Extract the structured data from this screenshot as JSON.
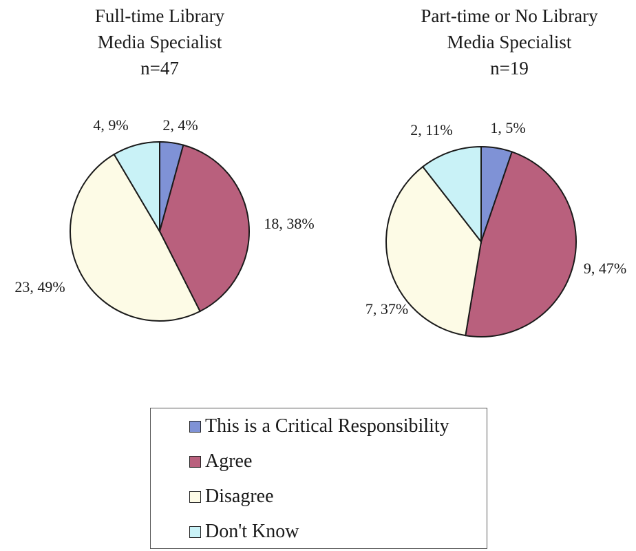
{
  "chart_data": [
    {
      "type": "pie",
      "title_lines": [
        "Full-time Library",
        "Media Specialist",
        "n=47"
      ],
      "categories": [
        "This is a Critical Responsibility",
        "Agree",
        "Disagree",
        "Don't Know"
      ],
      "values": [
        2,
        18,
        23,
        4
      ],
      "labels": [
        "2, 4%",
        "18, 38%",
        "23, 49%",
        "4, 9%"
      ]
    },
    {
      "type": "pie",
      "title_lines": [
        "Part-time or No Library",
        "Media Specialist",
        "n=19"
      ],
      "categories": [
        "This is a Critical Responsibility",
        "Agree",
        "Disagree",
        "Don't Know"
      ],
      "values": [
        1,
        9,
        7,
        2
      ],
      "labels": [
        "1, 5%",
        "9, 47%",
        "7, 37%",
        "2, 11%"
      ]
    }
  ],
  "legend": [
    {
      "label": "This is a Critical Responsibility",
      "color": "#7f92d6"
    },
    {
      "label": "Agree",
      "color": "#b9607d"
    },
    {
      "label": "Disagree",
      "color": "#fdfbe6"
    },
    {
      "label": "Don't Know",
      "color": "#c9f2f7"
    }
  ]
}
